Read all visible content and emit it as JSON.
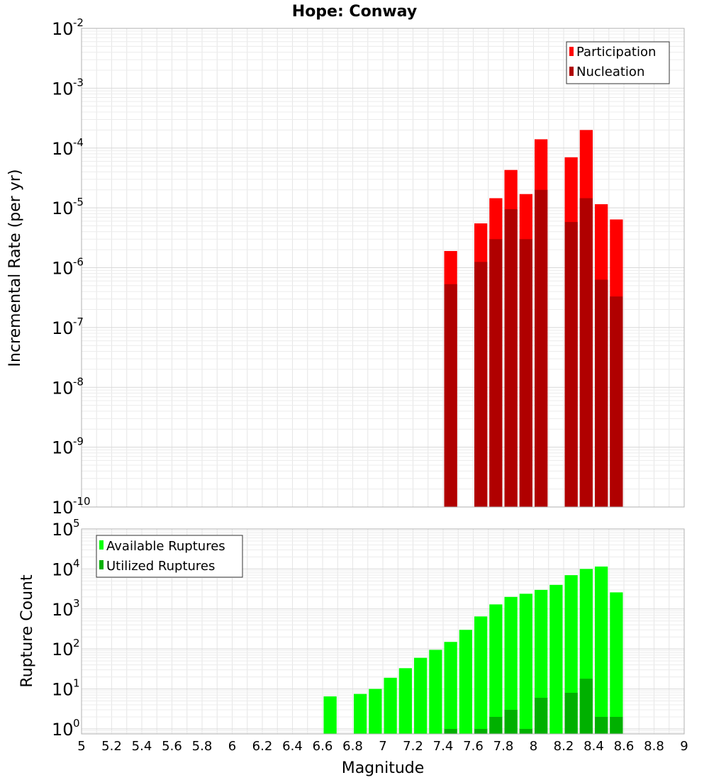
{
  "chart_data": [
    {
      "type": "bar",
      "title": "Hope: Conway",
      "ylabel": "Incremental Rate (per yr)",
      "xlabel": "",
      "ylog": true,
      "ylim": [
        1e-10,
        0.01
      ],
      "xlim": [
        5,
        9
      ],
      "bar_width": 0.1,
      "grid": true,
      "legend_placement": "top-right",
      "y_ticks": [
        {
          "base": "10",
          "exp": "-10"
        },
        {
          "base": "10",
          "exp": "-9"
        },
        {
          "base": "10",
          "exp": "-8"
        },
        {
          "base": "10",
          "exp": "-7"
        },
        {
          "base": "10",
          "exp": "-6"
        },
        {
          "base": "10",
          "exp": "-5"
        },
        {
          "base": "10",
          "exp": "-4"
        },
        {
          "base": "10",
          "exp": "-3"
        },
        {
          "base": "10",
          "exp": "-2"
        }
      ],
      "series": [
        {
          "name": "Participation",
          "color": "#ff0000",
          "x": [
            7.45,
            7.65,
            7.75,
            7.85,
            7.95,
            8.05,
            8.25,
            8.35,
            8.45,
            8.55
          ],
          "values": [
            1.9e-06,
            5.5e-06,
            1.45e-05,
            4.3e-05,
            1.7e-05,
            0.00014,
            7e-05,
            0.0002,
            1.15e-05,
            6.4e-06
          ]
        },
        {
          "name": "Nucleation",
          "color": "#b00000",
          "x": [
            7.45,
            7.65,
            7.75,
            7.85,
            7.95,
            8.05,
            8.25,
            8.35,
            8.45,
            8.55
          ],
          "values": [
            5.3e-07,
            1.25e-06,
            3e-06,
            9.5e-06,
            3e-06,
            2e-05,
            5.8e-06,
            1.45e-05,
            6.3e-07,
            3.3e-07
          ]
        }
      ]
    },
    {
      "type": "bar",
      "title": "",
      "ylabel": "Rupture Count",
      "xlabel": "Magnitude",
      "ylog": true,
      "ylim": [
        0.75,
        100000
      ],
      "xlim": [
        5,
        9
      ],
      "bar_width": 0.1,
      "grid": true,
      "legend_placement": "top-left",
      "y_ticks": [
        {
          "base": "10",
          "exp": "0",
          "value": 1
        },
        {
          "base": "10",
          "exp": "1",
          "value": 10
        },
        {
          "base": "10",
          "exp": "2",
          "value": 100
        },
        {
          "base": "10",
          "exp": "3",
          "value": 1000
        },
        {
          "base": "10",
          "exp": "4",
          "value": 10000
        },
        {
          "base": "10",
          "exp": "5",
          "value": 100000
        }
      ],
      "x_ticks": [
        "5",
        "5.2",
        "5.4",
        "5.6",
        "5.8",
        "6",
        "6.2",
        "6.4",
        "6.6",
        "6.8",
        "7",
        "7.2",
        "7.4",
        "7.6",
        "7.8",
        "8",
        "8.2",
        "8.4",
        "8.6",
        "8.8",
        "9"
      ],
      "series": [
        {
          "name": "Available Ruptures",
          "color": "#00ff00",
          "x": [
            6.65,
            6.85,
            6.95,
            7.05,
            7.15,
            7.25,
            7.35,
            7.45,
            7.55,
            7.65,
            7.75,
            7.85,
            7.95,
            8.05,
            8.15,
            8.25,
            8.35,
            8.45,
            8.55
          ],
          "values": [
            6.5,
            7.5,
            10,
            19,
            33,
            60,
            95,
            150,
            300,
            650,
            1300,
            2000,
            2400,
            3000,
            4000,
            7000,
            10000,
            11500,
            2600
          ]
        },
        {
          "name": "Utilized Ruptures",
          "color": "#00b000",
          "x": [
            7.45,
            7.65,
            7.75,
            7.85,
            7.95,
            8.05,
            8.25,
            8.35,
            8.45,
            8.55
          ],
          "values": [
            1,
            1,
            2,
            3,
            1,
            6,
            8,
            18,
            2,
            2
          ]
        }
      ]
    }
  ]
}
